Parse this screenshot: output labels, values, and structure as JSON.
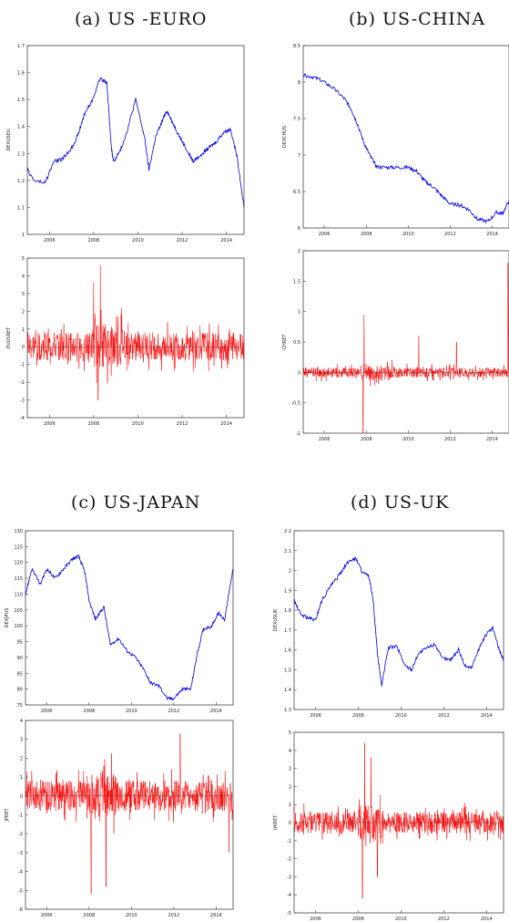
{
  "panels": [
    {
      "id": "a",
      "title": "(a) US -EURO"
    },
    {
      "id": "b",
      "title": "(b) US-CHINA"
    },
    {
      "id": "c",
      "title": "(c) US-JAPAN"
    },
    {
      "id": "d",
      "title": "(d) US-UK"
    }
  ],
  "colors": {
    "level": "#0000ee",
    "return": "#ff0000",
    "frame": "#444444"
  },
  "chart_data": [
    {
      "panel": "a",
      "type": "line",
      "ylabel": "DEXUSEU",
      "xlim": [
        2005,
        2014.8
      ],
      "ylim": [
        1.0,
        1.7
      ],
      "yticks": [
        "1",
        "1.1",
        "1.2",
        "1.3",
        "1.4",
        "1.5",
        "1.6",
        "1.7"
      ],
      "xticks": [
        "2006",
        "2008",
        "2010",
        "2012",
        "2014"
      ],
      "series": [
        {
          "color": "#0000ee",
          "x": [
            2005.0,
            2005.3,
            2005.8,
            2006.2,
            2006.6,
            2007.0,
            2007.3,
            2007.6,
            2007.9,
            2008.3,
            2008.6,
            2008.8,
            2008.9,
            2009.2,
            2009.5,
            2009.9,
            2010.3,
            2010.5,
            2010.8,
            2011.1,
            2011.3,
            2011.6,
            2011.9,
            2012.3,
            2012.5,
            2012.9,
            2013.2,
            2013.5,
            2013.9,
            2014.2,
            2014.5,
            2014.8
          ],
          "y": [
            1.24,
            1.2,
            1.19,
            1.27,
            1.28,
            1.32,
            1.37,
            1.45,
            1.49,
            1.58,
            1.56,
            1.32,
            1.27,
            1.31,
            1.38,
            1.5,
            1.36,
            1.24,
            1.36,
            1.42,
            1.46,
            1.41,
            1.36,
            1.3,
            1.27,
            1.3,
            1.32,
            1.34,
            1.38,
            1.39,
            1.28,
            1.1
          ]
        }
      ]
    },
    {
      "panel": "a",
      "type": "line",
      "ylabel": "EUUSRET",
      "xlim": [
        2005,
        2014.8
      ],
      "ylim": [
        -4,
        5
      ],
      "yticks": [
        "-4",
        "-3",
        "-2",
        "-1",
        "0",
        "1",
        "2",
        "3",
        "4",
        "5"
      ],
      "xticks": [
        "2006",
        "2008",
        "2010",
        "2012",
        "2014"
      ],
      "series": [
        {
          "color": "#ff0000",
          "spikes": [
            [
              2008.3,
              4.6
            ],
            [
              2008.2,
              -3.0
            ],
            [
              2008.0,
              3.6
            ]
          ],
          "baseline": 0,
          "noise": 0.8
        }
      ]
    },
    {
      "panel": "b",
      "type": "line",
      "ylabel": "DEXCHUS",
      "xlim": [
        2005,
        2014.8
      ],
      "ylim": [
        6.0,
        8.5
      ],
      "yticks": [
        "6",
        "6.5",
        "7",
        "7.5",
        "8",
        "8.5"
      ],
      "xticks": [
        "2006",
        "2008",
        "2010",
        "2012",
        "2014"
      ],
      "series": [
        {
          "color": "#0000ee",
          "x": [
            2005.0,
            2005.5,
            2006.0,
            2006.5,
            2007.0,
            2007.3,
            2007.6,
            2007.9,
            2008.2,
            2008.5,
            2009.0,
            2009.5,
            2010.0,
            2010.4,
            2010.8,
            2011.2,
            2011.6,
            2012.0,
            2012.5,
            2012.9,
            2013.3,
            2013.8,
            2014.2,
            2014.5,
            2014.8
          ],
          "y": [
            8.09,
            8.07,
            8.0,
            7.9,
            7.76,
            7.62,
            7.41,
            7.16,
            6.98,
            6.84,
            6.83,
            6.83,
            6.83,
            6.78,
            6.64,
            6.56,
            6.44,
            6.33,
            6.31,
            6.25,
            6.12,
            6.09,
            6.21,
            6.2,
            6.38
          ]
        }
      ]
    },
    {
      "panel": "b",
      "type": "line",
      "ylabel": "CHRET",
      "xlim": [
        2005,
        2014.8
      ],
      "ylim": [
        -1,
        2
      ],
      "yticks": [
        "-1",
        "-0.5",
        "0",
        "0.5",
        "1",
        "1.5",
        "2"
      ],
      "xticks": [
        "2006",
        "2008",
        "2010",
        "2012",
        "2014"
      ],
      "series": [
        {
          "color": "#ff0000",
          "spikes": [
            [
              2007.9,
              0.95
            ],
            [
              2007.85,
              -1.0
            ],
            [
              2014.75,
              1.8
            ],
            [
              2010.5,
              0.6
            ],
            [
              2012.3,
              0.5
            ]
          ],
          "baseline": 0,
          "noise": 0.08
        }
      ]
    },
    {
      "panel": "c",
      "type": "line",
      "ylabel": "DEXJPUS",
      "xlim": [
        2005,
        2014.8
      ],
      "ylim": [
        75,
        130
      ],
      "yticks": [
        "75",
        "80",
        "85",
        "90",
        "95",
        "100",
        "105",
        "110",
        "115",
        "120",
        "125",
        "130"
      ],
      "xticks": [
        "2006",
        "2008",
        "2010",
        "2012",
        "2014"
      ],
      "series": [
        {
          "color": "#0000ee",
          "x": [
            2005.0,
            2005.3,
            2005.7,
            2006.0,
            2006.4,
            2006.8,
            2007.2,
            2007.5,
            2007.8,
            2008.0,
            2008.3,
            2008.7,
            2009.0,
            2009.4,
            2009.8,
            2010.2,
            2010.6,
            2010.9,
            2011.3,
            2011.7,
            2012.0,
            2012.4,
            2012.8,
            2013.1,
            2013.4,
            2013.8,
            2014.1,
            2014.4,
            2014.8
          ],
          "y": [
            110,
            118,
            113,
            118,
            115,
            118,
            121,
            122,
            117,
            108,
            102,
            106,
            94,
            96,
            92,
            90,
            86,
            82,
            81,
            77,
            77,
            80,
            80,
            91,
            99,
            100,
            104,
            102,
            118
          ]
        }
      ]
    },
    {
      "panel": "c",
      "type": "line",
      "ylabel": "JPRET",
      "xlim": [
        2005,
        2014.8
      ],
      "ylim": [
        -6,
        4
      ],
      "yticks": [
        "-6",
        "-5",
        "-4",
        "-3",
        "-2",
        "-1",
        "0",
        "1",
        "2",
        "3",
        "4"
      ],
      "xticks": [
        "2006",
        "2008",
        "2010",
        "2012",
        "2014"
      ],
      "series": [
        {
          "color": "#ff0000",
          "spikes": [
            [
              2008.1,
              -5.2
            ],
            [
              2008.8,
              -4.8
            ],
            [
              2012.3,
              3.3
            ],
            [
              2014.6,
              -3.0
            ]
          ],
          "baseline": 0,
          "noise": 0.8
        }
      ]
    },
    {
      "panel": "d",
      "type": "line",
      "ylabel": "DEXUSUK",
      "xlim": [
        2005,
        2014.8
      ],
      "ylim": [
        1.3,
        2.2
      ],
      "yticks": [
        "1.3",
        "1.4",
        "1.5",
        "1.6",
        "1.7",
        "1.8",
        "1.9",
        "2",
        "2.1",
        "2.2"
      ],
      "xticks": [
        "2006",
        "2008",
        "2010",
        "2012",
        "2014"
      ],
      "series": [
        {
          "color": "#0000ee",
          "x": [
            2005.0,
            2005.3,
            2005.7,
            2006.0,
            2006.3,
            2006.7,
            2007.0,
            2007.3,
            2007.6,
            2007.9,
            2008.2,
            2008.5,
            2008.7,
            2008.9,
            2009.1,
            2009.4,
            2009.8,
            2010.2,
            2010.5,
            2010.8,
            2011.2,
            2011.6,
            2011.9,
            2012.3,
            2012.7,
            2013.0,
            2013.3,
            2013.7,
            2014.0,
            2014.3,
            2014.6,
            2014.8
          ],
          "y": [
            1.85,
            1.78,
            1.76,
            1.75,
            1.85,
            1.92,
            1.96,
            2.01,
            2.05,
            2.06,
            1.99,
            1.97,
            1.85,
            1.58,
            1.42,
            1.61,
            1.62,
            1.52,
            1.5,
            1.58,
            1.61,
            1.63,
            1.56,
            1.55,
            1.6,
            1.52,
            1.51,
            1.62,
            1.68,
            1.71,
            1.6,
            1.55
          ]
        }
      ]
    },
    {
      "panel": "d",
      "type": "line",
      "ylabel": "UKRET",
      "xlim": [
        2005,
        2014.8
      ],
      "ylim": [
        -5,
        5
      ],
      "yticks": [
        "-5",
        "-4",
        "-3",
        "-2",
        "-1",
        "0",
        "1",
        "2",
        "3",
        "4",
        "5"
      ],
      "xticks": [
        "2006",
        "2008",
        "2010",
        "2012",
        "2014"
      ],
      "series": [
        {
          "color": "#ff0000",
          "spikes": [
            [
              2008.3,
              4.4
            ],
            [
              2008.2,
              -4.2
            ],
            [
              2008.6,
              3.6
            ],
            [
              2008.9,
              -3.0
            ]
          ],
          "baseline": 0,
          "noise": 0.6
        }
      ]
    }
  ]
}
